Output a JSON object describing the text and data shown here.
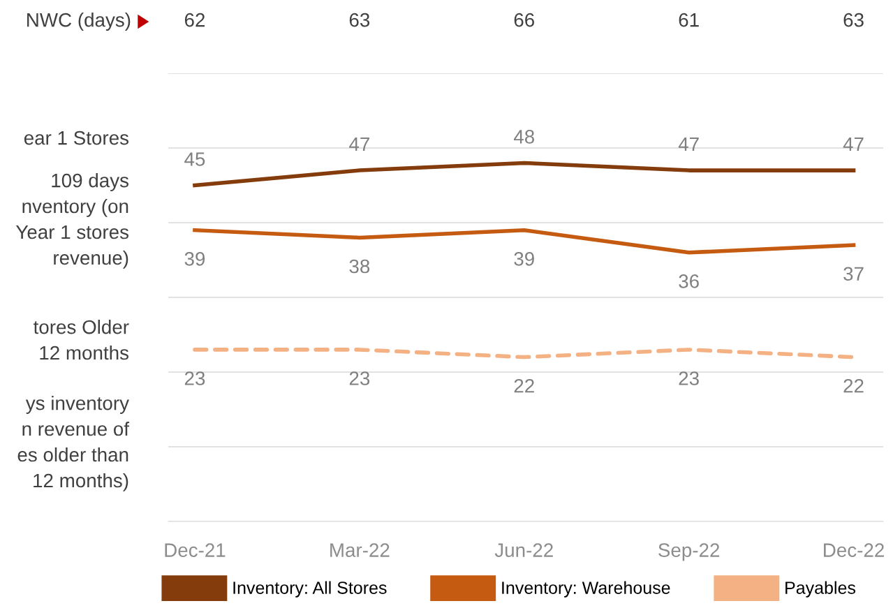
{
  "chart_data": {
    "type": "line",
    "categories": [
      "Dec-21",
      "Mar-22",
      "Jun-22",
      "Sep-22",
      "Dec-22"
    ],
    "series": [
      {
        "name": "Inventory: All Stores",
        "color": "#843c0c",
        "values": [
          45,
          47,
          48,
          47,
          47
        ]
      },
      {
        "name": "Inventory: Warehouse",
        "color": "#c55a11",
        "values": [
          39,
          38,
          39,
          36,
          37
        ]
      },
      {
        "name": "Payables",
        "color": "#f4b183",
        "values": [
          23,
          23,
          22,
          23,
          22
        ],
        "line_style": "dashed"
      }
    ],
    "ylim": [
      0,
      60
    ],
    "yticks": [
      {
        "value": 0,
        "label": null
      },
      {
        "value": 10,
        "label": null
      },
      {
        "value": 20,
        "label": null
      },
      {
        "value": 30,
        "label": null
      },
      {
        "value": 40,
        "label": null
      },
      {
        "value": 50,
        "label": null
      },
      {
        "value": 60,
        "label": null
      }
    ],
    "tick_labels": "x",
    "grid": "y",
    "data_labels": true,
    "legend": "bottom",
    "marker": "none",
    "annotations": [
      "NWC (days)",
      "62",
      "63",
      "66",
      "61",
      "63",
      "ear 1 Stores",
      "109 days\nnventory (on\nYear 1 stores\nrevenue)",
      "tores Older\n12 months",
      "ys inventory\nn revenue of\nes older than\n12 months)"
    ]
  }
}
